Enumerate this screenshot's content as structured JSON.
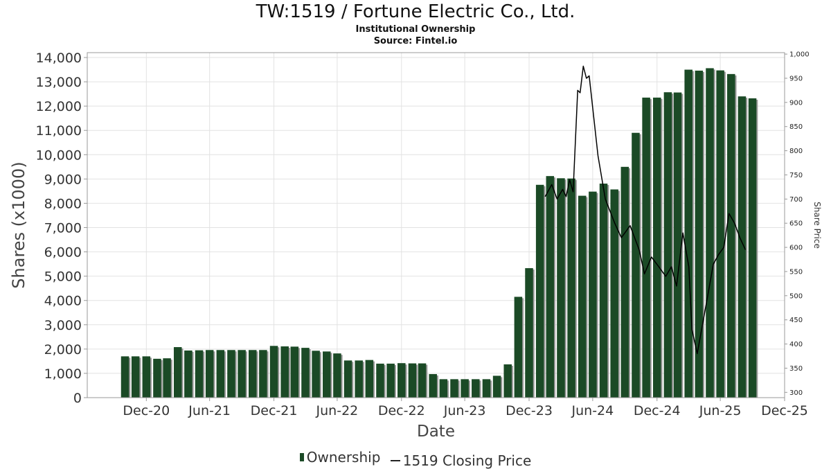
{
  "header": {
    "title": "TW:1519 / Fortune Electric Co., Ltd.",
    "subtitle": "Institutional Ownership",
    "source": "Source: Fintel.io"
  },
  "legend": {
    "ownership": "Ownership",
    "price": "1519 Closing Price"
  },
  "colors": {
    "bar": "#1b4a26",
    "bar_shadow": "#999999",
    "line": "#000000",
    "grid": "#e2e2e2"
  },
  "chart_data": {
    "type": "bar",
    "title": "TW:1519 / Fortune Electric Co., Ltd.",
    "xlabel": "Date",
    "ylabel": "Shares (x1000)",
    "y2label": "Share Price",
    "xlim": [
      "2020-07-15",
      "2025-12-31"
    ],
    "ylim": [
      0,
      14200
    ],
    "y2lim": [
      289,
      1003
    ],
    "x_ticks": [
      {
        "date": "2020-12-31",
        "label": "Dec-20"
      },
      {
        "date": "2021-06-30",
        "label": "Jun-21"
      },
      {
        "date": "2021-12-31",
        "label": "Dec-21"
      },
      {
        "date": "2022-06-30",
        "label": "Jun-22"
      },
      {
        "date": "2022-12-31",
        "label": "Dec-22"
      },
      {
        "date": "2023-06-30",
        "label": "Jun-23"
      },
      {
        "date": "2023-12-31",
        "label": "Dec-23"
      },
      {
        "date": "2024-06-30",
        "label": "Jun-24"
      },
      {
        "date": "2024-12-31",
        "label": "Dec-24"
      },
      {
        "date": "2025-06-30",
        "label": "Jun-25"
      },
      {
        "date": "2025-12-31",
        "label": "Dec-25"
      }
    ],
    "y_ticks": [
      0,
      1000,
      2000,
      3000,
      4000,
      5000,
      6000,
      7000,
      8000,
      9000,
      10000,
      11000,
      12000,
      13000,
      14000
    ],
    "y_tick_labels": [
      "0",
      "1,000",
      "2,000",
      "3,000",
      "4,000",
      "5,000",
      "6,000",
      "7,000",
      "8,000",
      "9,000",
      "10,000",
      "11,000",
      "12,000",
      "13,000",
      "14,000"
    ],
    "y2_ticks": [
      300,
      350,
      400,
      450,
      500,
      550,
      600,
      650,
      700,
      750,
      800,
      850,
      900,
      950,
      1000
    ],
    "y2_tick_labels": [
      "300",
      "350",
      "400",
      "450",
      "500",
      "550",
      "600",
      "650",
      "700",
      "750",
      "800",
      "850",
      "900",
      "950",
      "1,000"
    ],
    "series": [
      {
        "name": "Ownership",
        "type": "bar",
        "x": [
          "2020-10-31",
          "2020-11-30",
          "2020-12-31",
          "2021-01-31",
          "2021-02-28",
          "2021-03-31",
          "2021-04-30",
          "2021-05-31",
          "2021-06-30",
          "2021-07-31",
          "2021-08-31",
          "2021-09-30",
          "2021-10-31",
          "2021-11-30",
          "2021-12-31",
          "2022-01-31",
          "2022-02-28",
          "2022-03-31",
          "2022-04-30",
          "2022-05-31",
          "2022-06-30",
          "2022-07-31",
          "2022-08-31",
          "2022-09-30",
          "2022-10-31",
          "2022-11-30",
          "2022-12-31",
          "2023-01-31",
          "2023-02-28",
          "2023-03-31",
          "2023-04-30",
          "2023-05-31",
          "2023-06-30",
          "2023-07-31",
          "2023-08-31",
          "2023-09-30",
          "2023-10-31",
          "2023-11-30",
          "2023-12-31",
          "2024-01-31",
          "2024-02-29",
          "2024-03-31",
          "2024-04-30",
          "2024-05-31",
          "2024-06-30",
          "2024-07-31",
          "2024-08-31",
          "2024-09-30",
          "2024-10-31",
          "2024-11-30",
          "2024-12-31",
          "2025-01-31",
          "2025-02-28",
          "2025-03-31",
          "2025-04-30",
          "2025-05-31",
          "2025-06-30",
          "2025-07-31",
          "2025-08-31",
          "2025-09-30"
        ],
        "values": [
          1700,
          1700,
          1700,
          1600,
          1620,
          2080,
          1940,
          1950,
          1960,
          1960,
          1960,
          1960,
          1960,
          1960,
          2130,
          2110,
          2100,
          2050,
          1930,
          1900,
          1820,
          1530,
          1530,
          1550,
          1400,
          1400,
          1420,
          1410,
          1410,
          970,
          760,
          760,
          760,
          760,
          760,
          900,
          1370,
          4150,
          5330,
          8760,
          9120,
          9030,
          9020,
          8310,
          8480,
          8810,
          8570,
          9500,
          10900,
          12350,
          12350,
          12570,
          12560,
          13500,
          13460,
          13560,
          13470,
          13320,
          12400,
          12320
        ]
      },
      {
        "name": "1519 Closing Price",
        "type": "line",
        "points": [
          {
            "x": "2024-02-15",
            "y": 705
          },
          {
            "x": "2024-03-05",
            "y": 730
          },
          {
            "x": "2024-03-20",
            "y": 700
          },
          {
            "x": "2024-04-05",
            "y": 720
          },
          {
            "x": "2024-04-15",
            "y": 705
          },
          {
            "x": "2024-04-25",
            "y": 740
          },
          {
            "x": "2024-05-05",
            "y": 715
          },
          {
            "x": "2024-05-18",
            "y": 925
          },
          {
            "x": "2024-05-25",
            "y": 920
          },
          {
            "x": "2024-06-03",
            "y": 975
          },
          {
            "x": "2024-06-12",
            "y": 950
          },
          {
            "x": "2024-06-20",
            "y": 955
          },
          {
            "x": "2024-07-15",
            "y": 790
          },
          {
            "x": "2024-08-05",
            "y": 700
          },
          {
            "x": "2024-09-01",
            "y": 650
          },
          {
            "x": "2024-09-20",
            "y": 620
          },
          {
            "x": "2024-10-15",
            "y": 645
          },
          {
            "x": "2024-11-10",
            "y": 595
          },
          {
            "x": "2024-11-25",
            "y": 545
          },
          {
            "x": "2024-12-15",
            "y": 580
          },
          {
            "x": "2025-01-05",
            "y": 560
          },
          {
            "x": "2025-01-25",
            "y": 540
          },
          {
            "x": "2025-02-10",
            "y": 560
          },
          {
            "x": "2025-02-25",
            "y": 520
          },
          {
            "x": "2025-03-15",
            "y": 630
          },
          {
            "x": "2025-04-01",
            "y": 560
          },
          {
            "x": "2025-04-10",
            "y": 430
          },
          {
            "x": "2025-04-25",
            "y": 380
          },
          {
            "x": "2025-05-10",
            "y": 440
          },
          {
            "x": "2025-05-25",
            "y": 500
          },
          {
            "x": "2025-06-10",
            "y": 565
          },
          {
            "x": "2025-06-25",
            "y": 585
          },
          {
            "x": "2025-07-10",
            "y": 600
          },
          {
            "x": "2025-07-25",
            "y": 670
          },
          {
            "x": "2025-08-10",
            "y": 650
          },
          {
            "x": "2025-08-25",
            "y": 620
          },
          {
            "x": "2025-09-10",
            "y": 595
          }
        ]
      }
    ],
    "grid": true,
    "legend_position": "bottom"
  }
}
